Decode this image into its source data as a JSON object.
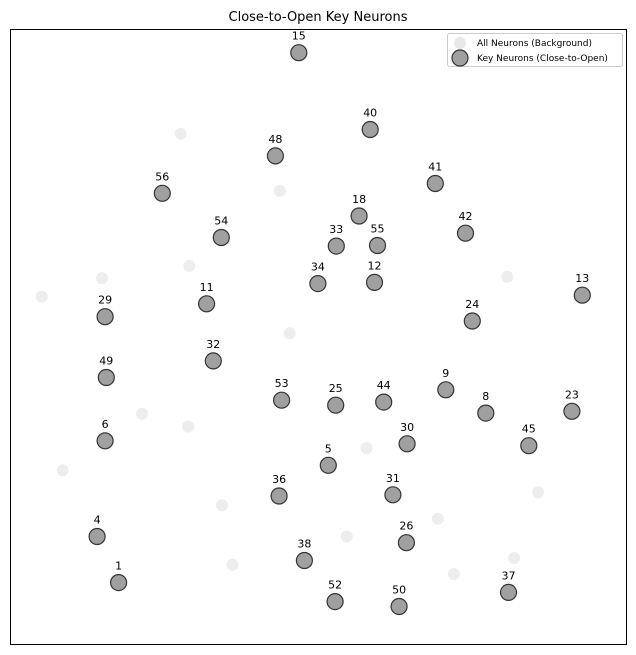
{
  "chart_data": {
    "type": "scatter",
    "title": "Close-to-Open Key Neurons",
    "xlabel": "",
    "ylabel": "",
    "grid": false,
    "axis_ticks": false,
    "legend_position": "top-right",
    "xlim": [
      0,
      100
    ],
    "ylim": [
      0,
      100
    ],
    "colors": {
      "background_point": "#e8e8e8",
      "key_point_fill": "#a0a0a0",
      "key_point_edge": "#333333"
    },
    "series": [
      {
        "name": "All Neurons (Background)",
        "points": [
          {
            "x": 27.6,
            "y": 83.1
          },
          {
            "x": 43.7,
            "y": 73.8
          },
          {
            "x": 29.0,
            "y": 61.6
          },
          {
            "x": 14.8,
            "y": 59.6
          },
          {
            "x": 5.0,
            "y": 56.6
          },
          {
            "x": 80.7,
            "y": 59.8
          },
          {
            "x": 45.3,
            "y": 50.6
          },
          {
            "x": 21.3,
            "y": 37.5
          },
          {
            "x": 28.8,
            "y": 35.4
          },
          {
            "x": 8.4,
            "y": 28.3
          },
          {
            "x": 57.8,
            "y": 31.9
          },
          {
            "x": 85.7,
            "y": 24.7
          },
          {
            "x": 34.3,
            "y": 22.6
          },
          {
            "x": 69.4,
            "y": 20.4
          },
          {
            "x": 54.6,
            "y": 17.5
          },
          {
            "x": 36.0,
            "y": 12.9
          },
          {
            "x": 81.8,
            "y": 14.0
          },
          {
            "x": 72.0,
            "y": 11.4
          }
        ]
      },
      {
        "name": "Key Neurons (Close-to-Open)",
        "points": [
          {
            "x": 46.8,
            "y": 96.3,
            "label": "15"
          },
          {
            "x": 58.4,
            "y": 83.8,
            "label": "40"
          },
          {
            "x": 43.0,
            "y": 79.5,
            "label": "48"
          },
          {
            "x": 24.6,
            "y": 73.4,
            "label": "56"
          },
          {
            "x": 69.0,
            "y": 75.0,
            "label": "41"
          },
          {
            "x": 56.6,
            "y": 69.7,
            "label": "18"
          },
          {
            "x": 34.2,
            "y": 66.2,
            "label": "54"
          },
          {
            "x": 52.9,
            "y": 64.8,
            "label": "33"
          },
          {
            "x": 59.6,
            "y": 64.9,
            "label": "55"
          },
          {
            "x": 73.9,
            "y": 66.9,
            "label": "42"
          },
          {
            "x": 49.9,
            "y": 58.7,
            "label": "34"
          },
          {
            "x": 59.1,
            "y": 58.9,
            "label": "12"
          },
          {
            "x": 92.9,
            "y": 56.8,
            "label": "13"
          },
          {
            "x": 31.8,
            "y": 55.4,
            "label": "11"
          },
          {
            "x": 15.3,
            "y": 53.3,
            "label": "29"
          },
          {
            "x": 75.0,
            "y": 52.6,
            "label": "24"
          },
          {
            "x": 32.9,
            "y": 46.1,
            "label": "32"
          },
          {
            "x": 15.5,
            "y": 43.4,
            "label": "49"
          },
          {
            "x": 70.7,
            "y": 41.4,
            "label": "9"
          },
          {
            "x": 44.0,
            "y": 39.7,
            "label": "53"
          },
          {
            "x": 52.8,
            "y": 38.9,
            "label": "25"
          },
          {
            "x": 60.6,
            "y": 39.4,
            "label": "44"
          },
          {
            "x": 77.2,
            "y": 37.6,
            "label": "8"
          },
          {
            "x": 91.2,
            "y": 37.9,
            "label": "23"
          },
          {
            "x": 15.3,
            "y": 33.1,
            "label": "6"
          },
          {
            "x": 64.4,
            "y": 32.6,
            "label": "30"
          },
          {
            "x": 84.2,
            "y": 32.3,
            "label": "45"
          },
          {
            "x": 51.6,
            "y": 29.1,
            "label": "5"
          },
          {
            "x": 43.6,
            "y": 24.1,
            "label": "36"
          },
          {
            "x": 62.1,
            "y": 24.3,
            "label": "31"
          },
          {
            "x": 14.0,
            "y": 17.5,
            "label": "4"
          },
          {
            "x": 64.3,
            "y": 16.5,
            "label": "26"
          },
          {
            "x": 47.7,
            "y": 13.6,
            "label": "38"
          },
          {
            "x": 17.5,
            "y": 10.0,
            "label": "1"
          },
          {
            "x": 52.7,
            "y": 6.9,
            "label": "52"
          },
          {
            "x": 63.1,
            "y": 6.1,
            "label": "50"
          },
          {
            "x": 80.9,
            "y": 8.4,
            "label": "37"
          }
        ]
      }
    ]
  }
}
